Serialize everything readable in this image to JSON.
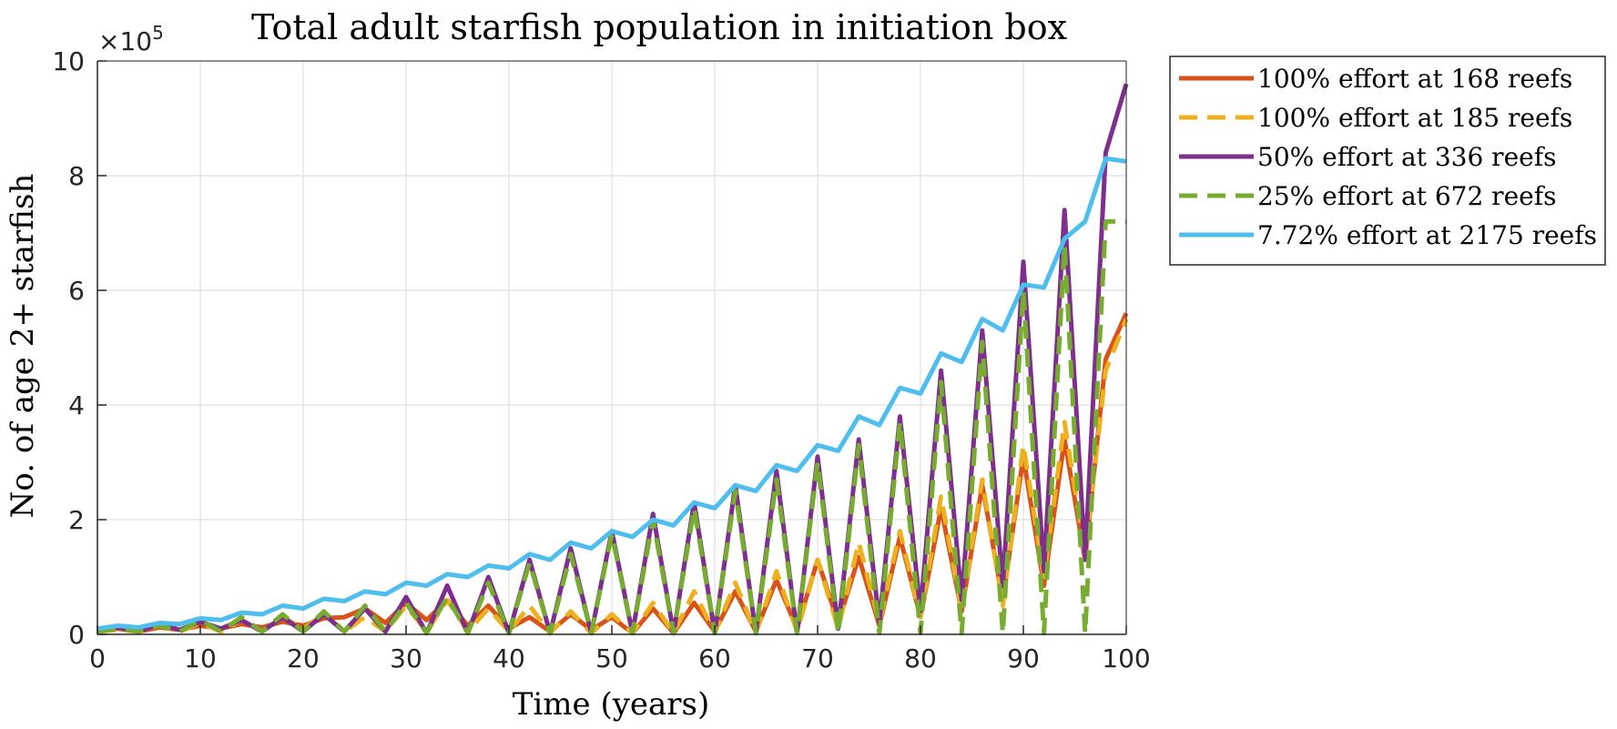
{
  "chart_data": {
    "type": "line",
    "title": "Total adult starfish population in initiation box",
    "xlabel": "Time (years)",
    "ylabel": "No. of age 2+ starfish",
    "exponent_label": "×10",
    "exponent_power": "5",
    "xlim": [
      0,
      100
    ],
    "ylim": [
      0,
      10
    ],
    "xticks": [
      "0",
      "10",
      "20",
      "30",
      "40",
      "50",
      "60",
      "70",
      "80",
      "90",
      "100"
    ],
    "yticks": [
      "0",
      "2",
      "4",
      "6",
      "8",
      "10"
    ],
    "grid": true,
    "legend_position": "outside-top-right",
    "series": [
      {
        "name": "100% effort at 168 reefs",
        "color": "#D95319",
        "dash": "solid",
        "x": [
          0,
          2,
          4,
          6,
          8,
          10,
          12,
          14,
          16,
          18,
          20,
          22,
          24,
          26,
          28,
          30,
          32,
          34,
          36,
          38,
          40,
          42,
          44,
          46,
          48,
          50,
          52,
          54,
          56,
          58,
          60,
          62,
          64,
          66,
          68,
          70,
          72,
          74,
          76,
          78,
          80,
          82,
          84,
          86,
          88,
          90,
          92,
          94,
          96,
          98,
          100
        ],
        "y": [
          0.05,
          0.1,
          0.05,
          0.12,
          0.08,
          0.15,
          0.1,
          0.18,
          0.12,
          0.22,
          0.15,
          0.28,
          0.3,
          0.45,
          0.2,
          0.55,
          0.25,
          0.6,
          0.15,
          0.5,
          0.1,
          0.3,
          0.05,
          0.35,
          0.08,
          0.3,
          0.02,
          0.45,
          0.02,
          0.55,
          0.05,
          0.75,
          0.05,
          0.95,
          0.1,
          1.3,
          0.2,
          1.35,
          0.15,
          1.7,
          0.3,
          2.2,
          0.4,
          2.6,
          0.6,
          3.1,
          0.85,
          3.4,
          1.3,
          4.8,
          5.6
        ]
      },
      {
        "name": "100% effort at 185 reefs",
        "color": "#EDB120",
        "dash": "dashed",
        "x": [
          0,
          2,
          4,
          6,
          8,
          10,
          12,
          14,
          16,
          18,
          20,
          22,
          24,
          26,
          28,
          30,
          32,
          34,
          36,
          38,
          40,
          42,
          44,
          46,
          48,
          50,
          52,
          54,
          56,
          58,
          60,
          62,
          64,
          66,
          68,
          70,
          72,
          74,
          76,
          78,
          80,
          82,
          84,
          86,
          88,
          90,
          92,
          94,
          96,
          98,
          100
        ],
        "y": [
          0.05,
          0.08,
          0.05,
          0.15,
          0.05,
          0.2,
          0.05,
          0.25,
          0.05,
          0.3,
          0.1,
          0.35,
          0.05,
          0.3,
          0.05,
          0.5,
          0.05,
          0.6,
          0.05,
          0.45,
          0.05,
          0.5,
          0.02,
          0.4,
          0.02,
          0.35,
          0.02,
          0.55,
          0.02,
          0.75,
          0.02,
          0.9,
          0.02,
          1.1,
          0.05,
          1.3,
          0.1,
          1.6,
          0.2,
          1.8,
          0.3,
          2.4,
          0.4,
          2.7,
          0.5,
          3.3,
          1.0,
          3.7,
          1.4,
          4.6,
          5.5
        ]
      },
      {
        "name": "50% effort at 336 reefs",
        "color": "#7E2F8E",
        "dash": "solid",
        "x": [
          0,
          2,
          4,
          6,
          8,
          10,
          12,
          14,
          16,
          18,
          20,
          22,
          24,
          26,
          28,
          30,
          32,
          34,
          36,
          38,
          40,
          42,
          44,
          46,
          48,
          50,
          52,
          54,
          56,
          58,
          60,
          62,
          64,
          66,
          68,
          70,
          72,
          74,
          76,
          78,
          80,
          82,
          84,
          86,
          88,
          90,
          92,
          94,
          96,
          98,
          100
        ],
        "y": [
          0.1,
          0.12,
          0.05,
          0.18,
          0.08,
          0.22,
          0.1,
          0.25,
          0.05,
          0.3,
          0.05,
          0.35,
          0.05,
          0.45,
          0.05,
          0.65,
          0.02,
          0.85,
          0.02,
          1.0,
          0.02,
          1.3,
          0.02,
          1.5,
          0.02,
          1.8,
          0.02,
          2.1,
          0.02,
          2.3,
          0.02,
          2.6,
          0.02,
          2.85,
          0.02,
          3.1,
          0.1,
          3.4,
          0.2,
          3.8,
          0.4,
          4.6,
          0.6,
          5.3,
          0.85,
          6.5,
          1.1,
          7.4,
          1.3,
          8.4,
          9.6
        ]
      },
      {
        "name": "25% effort at 672 reefs",
        "color": "#77AC30",
        "dash": "dashed",
        "x": [
          0,
          2,
          4,
          6,
          8,
          10,
          12,
          14,
          16,
          18,
          20,
          22,
          24,
          26,
          28,
          30,
          32,
          34,
          36,
          38,
          40,
          42,
          44,
          46,
          48,
          50,
          52,
          54,
          56,
          58,
          60,
          62,
          64,
          66,
          68,
          70,
          72,
          74,
          76,
          78,
          80,
          82,
          84,
          86,
          88,
          90,
          92,
          94,
          96,
          98,
          100
        ],
        "y": [
          0.05,
          0.1,
          0.05,
          0.15,
          0.05,
          0.25,
          0.05,
          0.3,
          0.05,
          0.35,
          0.05,
          0.4,
          0.05,
          0.5,
          0.05,
          0.55,
          0.02,
          0.65,
          0.02,
          0.9,
          0.02,
          1.25,
          0.02,
          1.4,
          0.02,
          1.75,
          0.02,
          2.0,
          0.02,
          2.2,
          0.02,
          2.5,
          0.02,
          2.7,
          0.02,
          3.0,
          0.02,
          3.3,
          0.02,
          3.7,
          0.02,
          4.4,
          0.02,
          5.1,
          0.02,
          6.0,
          0.02,
          6.8,
          0.02,
          7.2,
          7.2
        ]
      },
      {
        "name": "7.72% effort at 2175 reefs",
        "color": "#4DBEEE",
        "dash": "solid",
        "x": [
          0,
          2,
          4,
          6,
          8,
          10,
          12,
          14,
          16,
          18,
          20,
          22,
          24,
          26,
          28,
          30,
          32,
          34,
          36,
          38,
          40,
          42,
          44,
          46,
          48,
          50,
          52,
          54,
          56,
          58,
          60,
          62,
          64,
          66,
          68,
          70,
          72,
          74,
          76,
          78,
          80,
          82,
          84,
          86,
          88,
          90,
          92,
          94,
          96,
          98,
          100
        ],
        "y": [
          0.1,
          0.15,
          0.12,
          0.2,
          0.18,
          0.28,
          0.25,
          0.38,
          0.35,
          0.5,
          0.45,
          0.62,
          0.58,
          0.75,
          0.7,
          0.9,
          0.85,
          1.05,
          1.0,
          1.2,
          1.15,
          1.4,
          1.3,
          1.6,
          1.5,
          1.8,
          1.7,
          2.0,
          1.9,
          2.3,
          2.2,
          2.6,
          2.5,
          2.95,
          2.85,
          3.3,
          3.2,
          3.8,
          3.65,
          4.3,
          4.2,
          4.9,
          4.75,
          5.5,
          5.3,
          6.1,
          6.05,
          6.9,
          7.2,
          8.3,
          8.25
        ]
      }
    ]
  }
}
